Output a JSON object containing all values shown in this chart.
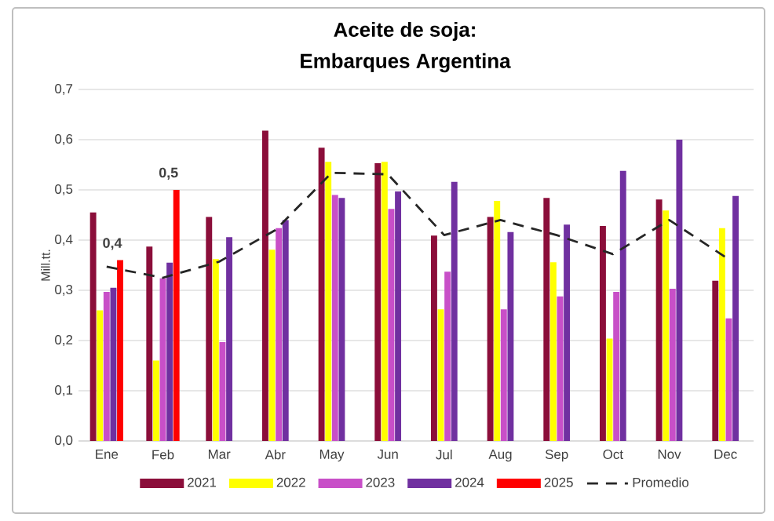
{
  "chart_data": {
    "type": "bar",
    "title": "Aceite de soja:",
    "subtitle": "Embarques Argentina",
    "ylabel": "Mill.tt.",
    "categories": [
      "Ene",
      "Feb",
      "Mar",
      "Abr",
      "May",
      "Jun",
      "Jul",
      "Aug",
      "Sep",
      "Oct",
      "Nov",
      "Dec"
    ],
    "series": [
      {
        "name": "2021",
        "color": "#8b0e3a",
        "values": [
          0.455,
          0.387,
          0.446,
          0.618,
          0.584,
          0.553,
          0.409,
          0.446,
          0.484,
          0.428,
          0.481,
          0.319
        ]
      },
      {
        "name": "2022",
        "color": "#ffff00",
        "values": [
          0.26,
          0.16,
          0.362,
          0.381,
          0.556,
          0.556,
          0.262,
          0.478,
          0.356,
          0.204,
          0.459,
          0.424
        ]
      },
      {
        "name": "2023",
        "color": "#c84fc8",
        "values": [
          0.297,
          0.324,
          0.197,
          0.424,
          0.49,
          0.462,
          0.337,
          0.262,
          0.288,
          0.297,
          0.303,
          0.244
        ]
      },
      {
        "name": "2024",
        "color": "#7030a0",
        "values": [
          0.305,
          0.355,
          0.406,
          0.44,
          0.484,
          0.497,
          0.516,
          0.416,
          0.431,
          0.538,
          0.6,
          0.488
        ]
      },
      {
        "name": "2025",
        "color": "#ff0000",
        "values": [
          0.36,
          0.5,
          null,
          null,
          null,
          null,
          null,
          null,
          null,
          null,
          null,
          null
        ],
        "value_labels": [
          "0,4",
          "0,5",
          null,
          null,
          null,
          null,
          null,
          null,
          null,
          null,
          null,
          null
        ]
      },
      {
        "name": "Promedio",
        "type": "line",
        "color": "#262626",
        "line_style": "dashed",
        "values": [
          0.347,
          0.325,
          0.357,
          0.42,
          0.534,
          0.531,
          0.41,
          0.44,
          0.41,
          0.372,
          0.44,
          0.366
        ]
      }
    ],
    "ylim": [
      0,
      0.7
    ],
    "yticks": [
      {
        "value": 0,
        "label": "0,0"
      },
      {
        "value": 0.1,
        "label": "0,1"
      },
      {
        "value": 0.2,
        "label": "0,2"
      },
      {
        "value": 0.3,
        "label": "0,3"
      },
      {
        "value": 0.4,
        "label": "0,4"
      },
      {
        "value": 0.5,
        "label": "0,5"
      },
      {
        "value": 0.6,
        "label": "0,6"
      },
      {
        "value": 0.7,
        "label": "0,7"
      }
    ],
    "grid": "y",
    "legend": "bottom"
  }
}
